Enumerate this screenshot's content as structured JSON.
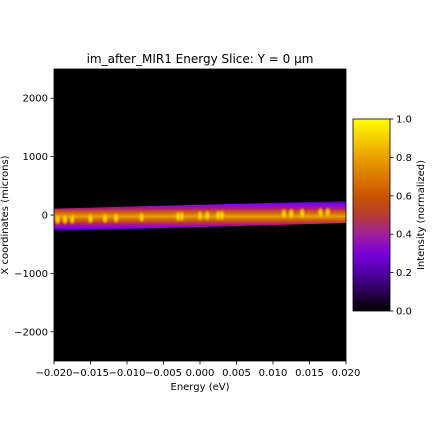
{
  "chart_data": {
    "type": "heatmap",
    "title": "im_after_MIR1 Energy Slice: Y = 0 µm",
    "xlabel": "Energy (eV)",
    "ylabel": "X coordinates (microns)",
    "xlim": [
      -0.02,
      0.02
    ],
    "ylim": [
      -2500,
      2500
    ],
    "x_ticks": [
      -0.02,
      -0.015,
      -0.01,
      -0.005,
      0.0,
      0.005,
      0.01,
      0.015,
      0.02
    ],
    "x_tick_labels": [
      "−0.020",
      "−0.015",
      "−0.010",
      "−0.005",
      "0.000",
      "0.005",
      "0.010",
      "0.015",
      "0.020"
    ],
    "y_ticks": [
      2000,
      1000,
      0,
      -1000,
      -2000
    ],
    "y_tick_labels": [
      "2000",
      "1000",
      "0",
      "−1000",
      "−2000"
    ],
    "colormap": "gnuplot",
    "background_color": "#000000",
    "band": {
      "center_at_xmin": -80,
      "center_at_xmax": 50,
      "halfwidth": 190,
      "hot_spots_energy": [
        -0.0195,
        -0.0185,
        -0.0175,
        -0.015,
        -0.013,
        -0.0115,
        -0.008,
        -0.003,
        -0.0025,
        0.0,
        0.001,
        0.0025,
        0.003,
        0.0115,
        0.0125,
        0.014,
        0.0165,
        0.0175
      ]
    },
    "colorbar": {
      "label": "Intensity (normalized)",
      "range": [
        0.0,
        1.0
      ],
      "ticks": [
        0.0,
        0.2,
        0.4,
        0.6,
        0.8,
        1.0
      ],
      "tick_labels": [
        "0.0",
        "0.2",
        "0.4",
        "0.6",
        "0.8",
        "1.0"
      ]
    }
  }
}
